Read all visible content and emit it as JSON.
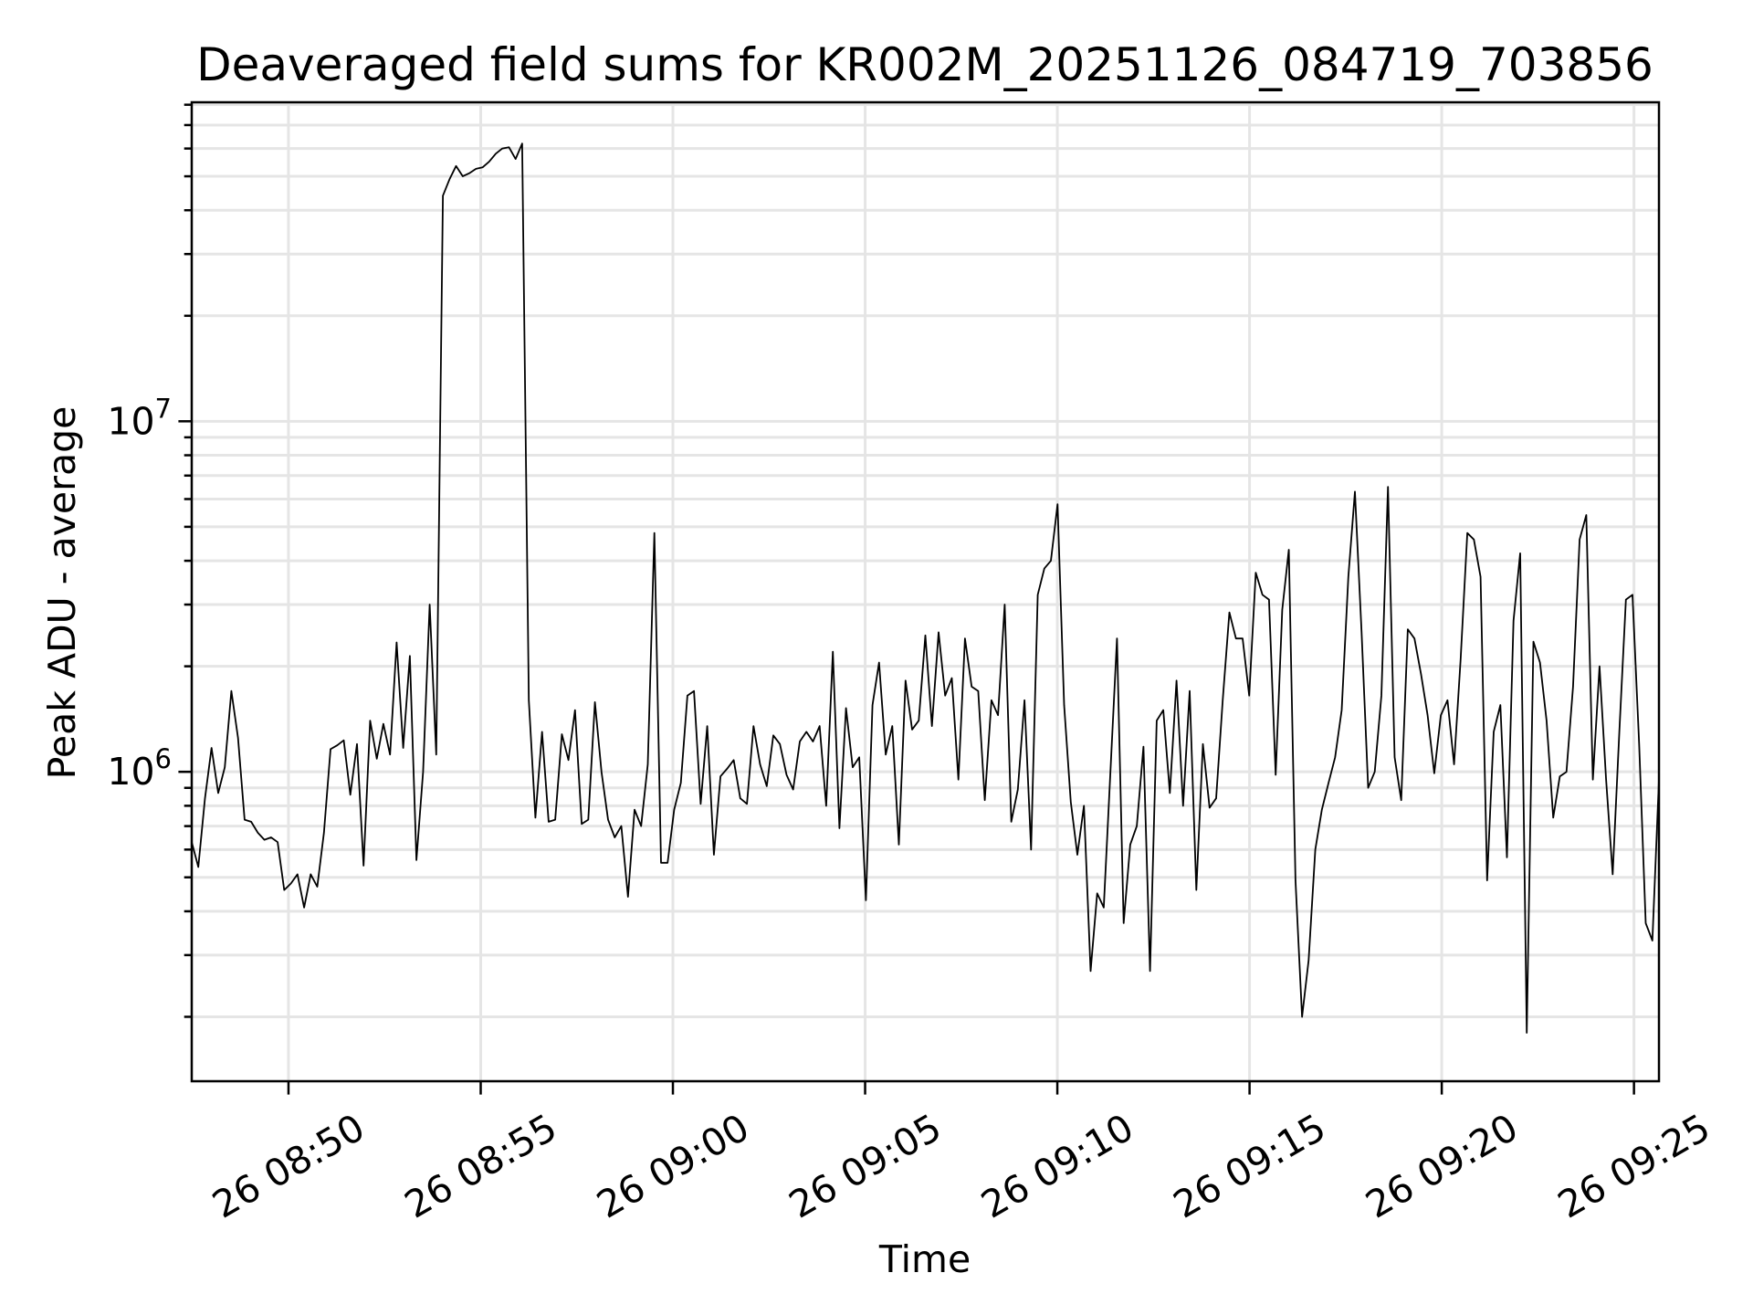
{
  "chart_data": {
    "type": "line",
    "title": "Deaveraged field sums for KR002M_20251126_084719_703856",
    "xlabel": "Time",
    "ylabel": "Peak ADU - average",
    "yscale": "log",
    "ylim": [
      131000,
      81300000
    ],
    "xlim": [
      "08:47:29",
      "09:25:39"
    ],
    "grid": true,
    "line_color": "#000000",
    "grid_color": "#e5e5e5",
    "x_start": "08:47:29",
    "x_end": "09:25:39",
    "x_ticks": [
      {
        "time": "08:50:00",
        "label": "26 08:50"
      },
      {
        "time": "08:55:00",
        "label": "26 08:55"
      },
      {
        "time": "09:00:00",
        "label": "26 09:00"
      },
      {
        "time": "09:05:00",
        "label": "26 09:05"
      },
      {
        "time": "09:10:00",
        "label": "26 09:10"
      },
      {
        "time": "09:15:00",
        "label": "26 09:15"
      },
      {
        "time": "09:20:00",
        "label": "26 09:20"
      },
      {
        "time": "09:25:00",
        "label": "26 09:25"
      }
    ],
    "y_ticks": [
      {
        "value": 1000000,
        "base": "10",
        "exp": "6"
      },
      {
        "value": 10000000,
        "base": "10",
        "exp": "7"
      }
    ],
    "values": [
      630000,
      535000,
      840000,
      1170000,
      870000,
      1030000,
      1700000,
      1250000,
      730000,
      720000,
      670000,
      640000,
      650000,
      630000,
      460000,
      480000,
      510000,
      410000,
      510000,
      470000,
      670000,
      1160000,
      1190000,
      1230000,
      860000,
      1200000,
      540000,
      1400000,
      1090000,
      1370000,
      1120000,
      2340000,
      1170000,
      2140000,
      560000,
      1000000,
      3000000,
      1120000,
      44000000,
      49000000,
      53500000,
      50000000,
      51000000,
      52500000,
      53000000,
      55000000,
      58000000,
      60000000,
      60500000,
      56000000,
      62000000,
      1600000,
      740000,
      1300000,
      720000,
      730000,
      1280000,
      1080000,
      1500000,
      710000,
      730000,
      1580000,
      1000000,
      730000,
      650000,
      700000,
      440000,
      780000,
      700000,
      1050000,
      4800000,
      550000,
      550000,
      780000,
      930000,
      1650000,
      1700000,
      810000,
      1350000,
      580000,
      970000,
      1020000,
      1080000,
      840000,
      810000,
      1350000,
      1050000,
      910000,
      1270000,
      1200000,
      980000,
      890000,
      1220000,
      1300000,
      1220000,
      1350000,
      800000,
      2200000,
      690000,
      1520000,
      1030000,
      1100000,
      430000,
      1550000,
      2050000,
      1120000,
      1350000,
      620000,
      1820000,
      1320000,
      1400000,
      2450000,
      1350000,
      2500000,
      1650000,
      1850000,
      950000,
      2400000,
      1750000,
      1700000,
      830000,
      1600000,
      1450000,
      3000000,
      720000,
      890000,
      1600000,
      600000,
      3200000,
      3800000,
      4000000,
      5800000,
      1550000,
      820000,
      580000,
      800000,
      270000,
      450000,
      410000,
      1000000,
      2400000,
      370000,
      620000,
      700000,
      1180000,
      270000,
      1400000,
      1500000,
      870000,
      1820000,
      800000,
      1700000,
      460000,
      1200000,
      790000,
      840000,
      1600000,
      2850000,
      2400000,
      2400000,
      1650000,
      3700000,
      3200000,
      3100000,
      980000,
      2900000,
      4300000,
      490000,
      200000,
      290000,
      600000,
      780000,
      930000,
      1100000,
      1500000,
      3600000,
      6300000,
      2500000,
      900000,
      1000000,
      1650000,
      6500000,
      1100000,
      830000,
      2550000,
      2400000,
      1900000,
      1450000,
      990000,
      1450000,
      1600000,
      1050000,
      2100000,
      4800000,
      4600000,
      3600000,
      490000,
      1300000,
      1550000,
      570000,
      2700000,
      4200000,
      180000,
      2350000,
      2050000,
      1400000,
      740000,
      970000,
      1000000,
      1750000,
      4600000,
      5400000,
      950000,
      2000000,
      950000,
      510000,
      1300000,
      3100000,
      3200000,
      1200000,
      370000,
      330000,
      950000
    ]
  }
}
